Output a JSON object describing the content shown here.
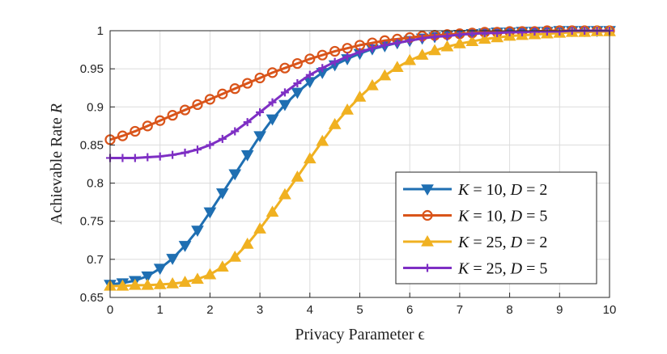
{
  "chart_data": {
    "type": "line",
    "title": "",
    "xlabel": "Privacy Parameter ϵ",
    "ylabel_text": "Achievable Rate ",
    "ylabel_var": "R",
    "xlim": [
      0,
      10
    ],
    "ylim": [
      0.65,
      1.0
    ],
    "xticks": [
      0,
      1,
      2,
      3,
      4,
      5,
      6,
      7,
      8,
      9,
      10
    ],
    "yticks": [
      0.65,
      0.7,
      0.75,
      0.8,
      0.85,
      0.9,
      0.95,
      1
    ],
    "ytick_labels": [
      "0.65",
      "0.7",
      "0.75",
      "0.8",
      "0.85",
      "0.9",
      "0.95",
      "1"
    ],
    "grid": true,
    "legend_position": "bottom-right",
    "x": [
      0,
      0.25,
      0.5,
      0.75,
      1,
      1.25,
      1.5,
      1.75,
      2,
      2.25,
      2.5,
      2.75,
      3,
      3.25,
      3.5,
      3.75,
      4,
      4.25,
      4.5,
      4.75,
      5,
      5.25,
      5.5,
      5.75,
      6,
      6.25,
      6.5,
      6.75,
      7,
      7.25,
      7.5,
      7.75,
      8,
      8.25,
      8.5,
      8.75,
      9,
      9.25,
      9.5,
      9.75,
      10
    ],
    "series": [
      {
        "name": "K = 10, D = 2",
        "legend_parts": [
          "K",
          " = 10, ",
          "D",
          " = 2"
        ],
        "color": "#1f6fb2",
        "marker": "triangle-down",
        "values": [
          0.667,
          0.669,
          0.672,
          0.678,
          0.688,
          0.701,
          0.718,
          0.738,
          0.762,
          0.787,
          0.812,
          0.837,
          0.862,
          0.884,
          0.903,
          0.919,
          0.933,
          0.945,
          0.955,
          0.963,
          0.97,
          0.976,
          0.98,
          0.984,
          0.987,
          0.99,
          0.992,
          0.994,
          0.995,
          0.996,
          0.997,
          0.998,
          0.998,
          0.999,
          0.999,
          0.999,
          1.0,
          1.0,
          1.0,
          1.0,
          1.0
        ]
      },
      {
        "name": "K = 10, D = 5",
        "legend_parts": [
          "K",
          " = 10, ",
          "D",
          " = 5"
        ],
        "color": "#d9541a",
        "marker": "circle",
        "values": [
          0.857,
          0.862,
          0.868,
          0.875,
          0.882,
          0.889,
          0.896,
          0.903,
          0.91,
          0.917,
          0.924,
          0.931,
          0.938,
          0.945,
          0.951,
          0.957,
          0.963,
          0.968,
          0.973,
          0.977,
          0.981,
          0.984,
          0.987,
          0.989,
          0.991,
          0.993,
          0.994,
          0.995,
          0.996,
          0.997,
          0.998,
          0.998,
          0.999,
          0.999,
          0.999,
          1.0,
          1.0,
          1.0,
          1.0,
          1.0,
          1.0
        ]
      },
      {
        "name": "K = 25, D = 2",
        "legend_parts": [
          "K",
          " = 25, ",
          "D",
          " = 2"
        ],
        "color": "#f0b121",
        "marker": "triangle-up",
        "values": [
          0.665,
          0.665,
          0.666,
          0.666,
          0.667,
          0.668,
          0.67,
          0.674,
          0.68,
          0.69,
          0.703,
          0.72,
          0.74,
          0.762,
          0.785,
          0.808,
          0.832,
          0.855,
          0.877,
          0.896,
          0.913,
          0.928,
          0.941,
          0.952,
          0.961,
          0.968,
          0.974,
          0.979,
          0.983,
          0.986,
          0.989,
          0.991,
          0.993,
          0.994,
          0.995,
          0.996,
          0.997,
          0.998,
          0.998,
          0.999,
          0.999
        ]
      },
      {
        "name": "K = 25, D = 5",
        "legend_parts": [
          "K",
          " = 25, ",
          "D",
          " = 5"
        ],
        "color": "#7e2fc4",
        "marker": "plus",
        "values": [
          0.833,
          0.833,
          0.833,
          0.834,
          0.835,
          0.837,
          0.84,
          0.844,
          0.85,
          0.858,
          0.868,
          0.88,
          0.893,
          0.906,
          0.919,
          0.931,
          0.942,
          0.951,
          0.959,
          0.966,
          0.972,
          0.977,
          0.981,
          0.984,
          0.987,
          0.99,
          0.992,
          0.993,
          0.995,
          0.996,
          0.997,
          0.997,
          0.998,
          0.998,
          0.999,
          0.999,
          0.999,
          1.0,
          1.0,
          1.0,
          1.0
        ]
      }
    ]
  }
}
